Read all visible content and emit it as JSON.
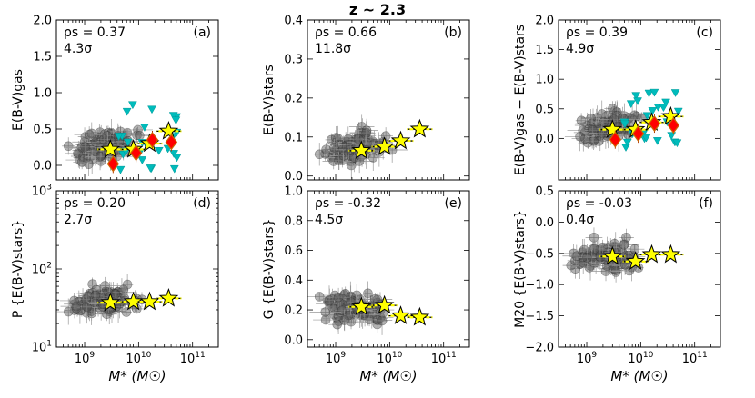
{
  "chart_data": {
    "type": "scatter",
    "title": "z ~ 2.3",
    "xlabel": "M* (M☉)",
    "xlim": [
      300000000.0,
      300000000000.0
    ],
    "xscale": "log",
    "xticks": [
      1000000000.0,
      10000000000.0,
      100000000000.0
    ],
    "xtick_labels": [
      "10^9",
      "10^10",
      "10^11"
    ],
    "bin_x": [
      3000000000.0,
      8000000000.0,
      16000000000.0,
      36000000000.0
    ],
    "panels": [
      {
        "id": "a",
        "label": "(a)",
        "rho": "ρs = 0.37",
        "sigma": "4.3σ",
        "ylabel": "E(B-V)gas",
        "ylim": [
          -0.2,
          2.0
        ],
        "yticks": [
          0.0,
          0.5,
          1.0,
          1.5,
          2.0
        ],
        "ytick_labels": [
          "0.0",
          "0.5",
          "1.0",
          "1.5",
          "2.0"
        ],
        "stars": [
          0.22,
          0.22,
          0.3,
          0.47
        ],
        "diamonds": [
          0.02,
          0.17,
          0.35,
          0.32
        ],
        "has_triangles": true
      },
      {
        "id": "b",
        "label": "(b)",
        "rho": "ρs = 0.66",
        "sigma": "11.8σ",
        "ylabel": "E(B-V)stars",
        "ylim": [
          -0.01,
          0.4
        ],
        "yticks": [
          0.0,
          0.1,
          0.2,
          0.3,
          0.4
        ],
        "ytick_labels": [
          "0.0",
          "0.1",
          "0.2",
          "0.3",
          "0.4"
        ],
        "stars": [
          0.065,
          0.075,
          0.09,
          0.12
        ],
        "diamonds": [],
        "has_triangles": false
      },
      {
        "id": "c",
        "label": "(c)",
        "rho": "ρs = 0.39",
        "sigma": "4.9σ",
        "ylabel": "E(B-V)gas − E(B-V)stars",
        "ylim": [
          -0.7,
          2.0
        ],
        "yticks": [
          0.0,
          0.5,
          1.0,
          1.5,
          2.0
        ],
        "ytick_labels": [
          "0.0",
          "0.5",
          "1.0",
          "1.5",
          "2.0"
        ],
        "stars": [
          0.15,
          0.15,
          0.27,
          0.37
        ],
        "diamonds": [
          -0.02,
          0.08,
          0.25,
          0.22
        ],
        "has_triangles": true
      },
      {
        "id": "d",
        "label": "(d)",
        "rho": "ρs = 0.20",
        "sigma": "2.7σ",
        "ylabel": "P {E(B-V)stars}",
        "ylim": [
          10,
          1000
        ],
        "yscale": "log",
        "yticks": [
          10,
          100,
          1000
        ],
        "ytick_labels": [
          "10^1",
          "10^2",
          "10^3"
        ],
        "stars": [
          37,
          38,
          38,
          42
        ],
        "diamonds": [],
        "has_triangles": false
      },
      {
        "id": "e",
        "label": "(e)",
        "rho": "ρs = -0.32",
        "sigma": "4.5σ",
        "ylabel": "G {E(B-V)stars}",
        "ylim": [
          -0.05,
          1.0
        ],
        "yticks": [
          0.0,
          0.2,
          0.4,
          0.6,
          0.8,
          1.0
        ],
        "ytick_labels": [
          "0.0",
          "0.2",
          "0.4",
          "0.6",
          "0.8",
          "1.0"
        ],
        "stars": [
          0.22,
          0.23,
          0.16,
          0.15
        ],
        "diamonds": [],
        "has_triangles": false
      },
      {
        "id": "f",
        "label": "(f)",
        "rho": "ρs = -0.03",
        "sigma": "0.4σ",
        "ylabel": "M20 {E(B-V)stars}",
        "ylim": [
          -2.0,
          0.5
        ],
        "yticks": [
          -2.0,
          -1.5,
          -1.0,
          -0.5,
          0.0,
          0.5
        ],
        "ytick_labels": [
          "−2.0",
          "−1.5",
          "−1.0",
          "−0.5",
          "0.0",
          "0.5"
        ],
        "stars": [
          -0.55,
          -0.63,
          -0.52,
          -0.52
        ],
        "diamonds": [],
        "has_triangles": false
      }
    ]
  },
  "colors": {
    "points": "#555555",
    "star_fill": "#ffff00",
    "diamond_fill": "#ff0000",
    "diamond_edge": "#cc6600",
    "triangle_fill": "#00bbbb"
  }
}
